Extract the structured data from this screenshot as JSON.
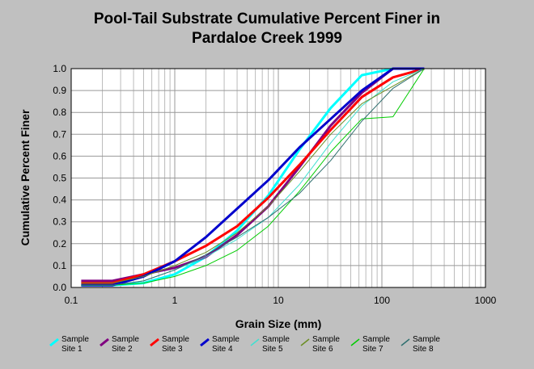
{
  "chart_data": {
    "type": "line",
    "title_line1": "Pool-Tail Substrate Cumulative Percent Finer in",
    "title_line2": "Pardaloe Creek 1999",
    "xlabel": "Grain Size (mm)",
    "ylabel": "Cumulative Percent Finer",
    "x_scale": "log",
    "xlim": [
      0.1,
      1000
    ],
    "ylim": [
      0,
      1.0
    ],
    "grid": true,
    "legend_position": "bottom",
    "x_ticks": [
      "0.1",
      "1",
      "10",
      "100",
      "1000"
    ],
    "y_ticks": [
      "0.0",
      "0.1",
      "0.2",
      "0.3",
      "0.4",
      "0.5",
      "0.6",
      "0.7",
      "0.8",
      "0.9",
      "1.0"
    ],
    "series": [
      {
        "name": "Sample Site 1",
        "label_line1": "Sample",
        "label_line2": "Site 1",
        "color": "#00ffff",
        "width": 3,
        "x": [
          0.125,
          0.25,
          0.5,
          1,
          2,
          4,
          8,
          16,
          32,
          64,
          128,
          256
        ],
        "y": [
          0.01,
          0.01,
          0.02,
          0.06,
          0.14,
          0.26,
          0.42,
          0.63,
          0.82,
          0.97,
          1.0,
          1.0
        ]
      },
      {
        "name": "Sample Site 2",
        "label_line1": "Sample",
        "label_line2": "Site 2",
        "color": "#800080",
        "width": 3,
        "x": [
          0.125,
          0.25,
          0.5,
          1,
          2,
          4,
          8,
          16,
          32,
          64,
          128,
          256
        ],
        "y": [
          0.03,
          0.03,
          0.06,
          0.09,
          0.14,
          0.24,
          0.37,
          0.55,
          0.74,
          0.89,
          1.0,
          1.0
        ]
      },
      {
        "name": "Sample Site 3",
        "label_line1": "Sample",
        "label_line2": "Site 3",
        "color": "#ff0000",
        "width": 3,
        "x": [
          0.125,
          0.25,
          0.5,
          1,
          2,
          4,
          8,
          16,
          32,
          64,
          128,
          256
        ],
        "y": [
          0.02,
          0.02,
          0.06,
          0.12,
          0.19,
          0.28,
          0.41,
          0.56,
          0.72,
          0.87,
          0.96,
          1.0
        ]
      },
      {
        "name": "Sample Site 4",
        "label_line1": "Sample",
        "label_line2": "Site 4",
        "color": "#0000cc",
        "width": 3,
        "x": [
          0.125,
          0.25,
          0.5,
          1,
          2,
          4,
          8,
          16,
          32,
          64,
          128,
          256
        ],
        "y": [
          0.01,
          0.01,
          0.05,
          0.12,
          0.23,
          0.36,
          0.49,
          0.64,
          0.77,
          0.9,
          1.0,
          1.0
        ]
      },
      {
        "name": "Sample Site 5",
        "label_line1": "Sample",
        "label_line2": "Site 5",
        "color": "#40e0d0",
        "width": 1,
        "x": [
          0.125,
          0.25,
          0.5,
          1,
          2,
          4,
          8,
          16,
          32,
          64,
          128,
          256
        ],
        "y": [
          0.01,
          0.01,
          0.03,
          0.08,
          0.14,
          0.22,
          0.32,
          0.47,
          0.66,
          0.83,
          0.94,
          1.0
        ]
      },
      {
        "name": "Sample Site 6",
        "label_line1": "Sample",
        "label_line2": "Site 6",
        "color": "#6b8e23",
        "width": 1,
        "x": [
          0.125,
          0.25,
          0.5,
          1,
          2,
          4,
          8,
          16,
          32,
          64,
          128,
          256
        ],
        "y": [
          0.02,
          0.02,
          0.05,
          0.1,
          0.16,
          0.25,
          0.37,
          0.53,
          0.7,
          0.84,
          0.92,
          1.0
        ]
      },
      {
        "name": "Sample Site 7",
        "label_line1": "Sample",
        "label_line2": "Site 7",
        "color": "#00cc00",
        "width": 1,
        "x": [
          0.125,
          0.25,
          0.5,
          1,
          2,
          4,
          8,
          16,
          32,
          64,
          128,
          256
        ],
        "y": [
          0.01,
          0.01,
          0.02,
          0.05,
          0.1,
          0.17,
          0.28,
          0.44,
          0.62,
          0.77,
          0.78,
          1.0
        ]
      },
      {
        "name": "Sample Site 8",
        "label_line1": "Sample",
        "label_line2": "Site 8",
        "color": "#2f6f6f",
        "width": 1,
        "x": [
          0.125,
          0.25,
          0.5,
          1,
          2,
          4,
          8,
          16,
          32,
          64,
          128,
          256
        ],
        "y": [
          0.01,
          0.01,
          0.03,
          0.08,
          0.15,
          0.23,
          0.32,
          0.43,
          0.58,
          0.76,
          0.91,
          1.0
        ]
      }
    ]
  }
}
